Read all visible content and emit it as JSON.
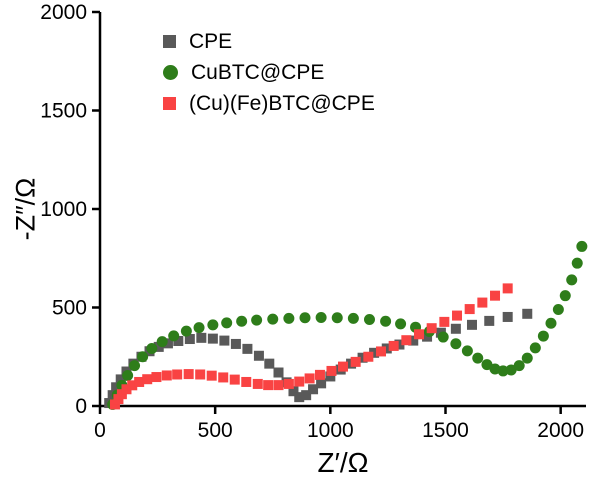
{
  "chart_data": {
    "type": "scatter",
    "title": "",
    "xlabel": "Z′/Ω",
    "ylabel": "-Z″/Ω",
    "xlim": [
      0,
      2110
    ],
    "ylim": [
      0,
      2000
    ],
    "xticks": [
      0,
      500,
      1000,
      1500,
      2000
    ],
    "yticks": [
      0,
      500,
      1000,
      1500,
      2000
    ],
    "grid": false,
    "legend_position": "upper-left-inside",
    "axis_color": "#000000",
    "background": "#ffffff",
    "series": [
      {
        "name": "CPE",
        "marker": "square",
        "color": "#595959",
        "points": [
          [
            40,
            15
          ],
          [
            55,
            55
          ],
          [
            70,
            95
          ],
          [
            90,
            135
          ],
          [
            115,
            175
          ],
          [
            145,
            215
          ],
          [
            180,
            250
          ],
          [
            215,
            278
          ],
          [
            255,
            300
          ],
          [
            295,
            318
          ],
          [
            340,
            330
          ],
          [
            390,
            340
          ],
          [
            440,
            346
          ],
          [
            490,
            342
          ],
          [
            540,
            332
          ],
          [
            590,
            315
          ],
          [
            640,
            290
          ],
          [
            690,
            255
          ],
          [
            735,
            215
          ],
          [
            775,
            170
          ],
          [
            810,
            120
          ],
          [
            840,
            75
          ],
          [
            865,
            45
          ],
          [
            895,
            55
          ],
          [
            925,
            85
          ],
          [
            960,
            115
          ],
          [
            1000,
            150
          ],
          [
            1045,
            185
          ],
          [
            1090,
            215
          ],
          [
            1140,
            245
          ],
          [
            1190,
            270
          ],
          [
            1245,
            292
          ],
          [
            1300,
            312
          ],
          [
            1360,
            332
          ],
          [
            1420,
            352
          ],
          [
            1480,
            372
          ],
          [
            1545,
            392
          ],
          [
            1615,
            412
          ],
          [
            1690,
            432
          ],
          [
            1770,
            452
          ],
          [
            1855,
            468
          ]
        ]
      },
      {
        "name": "CuBTC@CPE",
        "marker": "circle",
        "color": "#2e7d1a",
        "points": [
          [
            55,
            8
          ],
          [
            75,
            55
          ],
          [
            95,
            105
          ],
          [
            120,
            155
          ],
          [
            150,
            205
          ],
          [
            185,
            250
          ],
          [
            225,
            292
          ],
          [
            270,
            327
          ],
          [
            320,
            356
          ],
          [
            375,
            380
          ],
          [
            430,
            398
          ],
          [
            490,
            412
          ],
          [
            550,
            422
          ],
          [
            615,
            430
          ],
          [
            680,
            436
          ],
          [
            750,
            441
          ],
          [
            820,
            445
          ],
          [
            890,
            448
          ],
          [
            960,
            449
          ],
          [
            1030,
            448
          ],
          [
            1100,
            445
          ],
          [
            1170,
            439
          ],
          [
            1240,
            430
          ],
          [
            1305,
            417
          ],
          [
            1370,
            400
          ],
          [
            1430,
            378
          ],
          [
            1490,
            350
          ],
          [
            1545,
            316
          ],
          [
            1595,
            280
          ],
          [
            1640,
            243
          ],
          [
            1680,
            210
          ],
          [
            1715,
            188
          ],
          [
            1750,
            178
          ],
          [
            1785,
            183
          ],
          [
            1820,
            205
          ],
          [
            1855,
            243
          ],
          [
            1890,
            295
          ],
          [
            1925,
            355
          ],
          [
            1958,
            420
          ],
          [
            1990,
            490
          ],
          [
            2020,
            560
          ],
          [
            2048,
            640
          ],
          [
            2072,
            725
          ],
          [
            2092,
            810
          ]
        ]
      },
      {
        "name": "(Cu)(Fe)BTC@CPE",
        "marker": "square",
        "color": "#f94343",
        "points": [
          [
            65,
            8
          ],
          [
            80,
            35
          ],
          [
            95,
            60
          ],
          [
            115,
            85
          ],
          [
            140,
            105
          ],
          [
            170,
            122
          ],
          [
            205,
            136
          ],
          [
            245,
            147
          ],
          [
            290,
            155
          ],
          [
            335,
            160
          ],
          [
            385,
            162
          ],
          [
            435,
            160
          ],
          [
            485,
            154
          ],
          [
            535,
            145
          ],
          [
            585,
            134
          ],
          [
            635,
            122
          ],
          [
            685,
            112
          ],
          [
            730,
            106
          ],
          [
            775,
            106
          ],
          [
            820,
            112
          ],
          [
            865,
            124
          ],
          [
            910,
            140
          ],
          [
            955,
            158
          ],
          [
            1005,
            178
          ],
          [
            1055,
            200
          ],
          [
            1110,
            224
          ],
          [
            1165,
            250
          ],
          [
            1220,
            277
          ],
          [
            1275,
            305
          ],
          [
            1330,
            334
          ],
          [
            1385,
            364
          ],
          [
            1440,
            395
          ],
          [
            1495,
            427
          ],
          [
            1550,
            459
          ],
          [
            1605,
            492
          ],
          [
            1660,
            525
          ],
          [
            1715,
            560
          ],
          [
            1770,
            597
          ]
        ]
      }
    ]
  }
}
